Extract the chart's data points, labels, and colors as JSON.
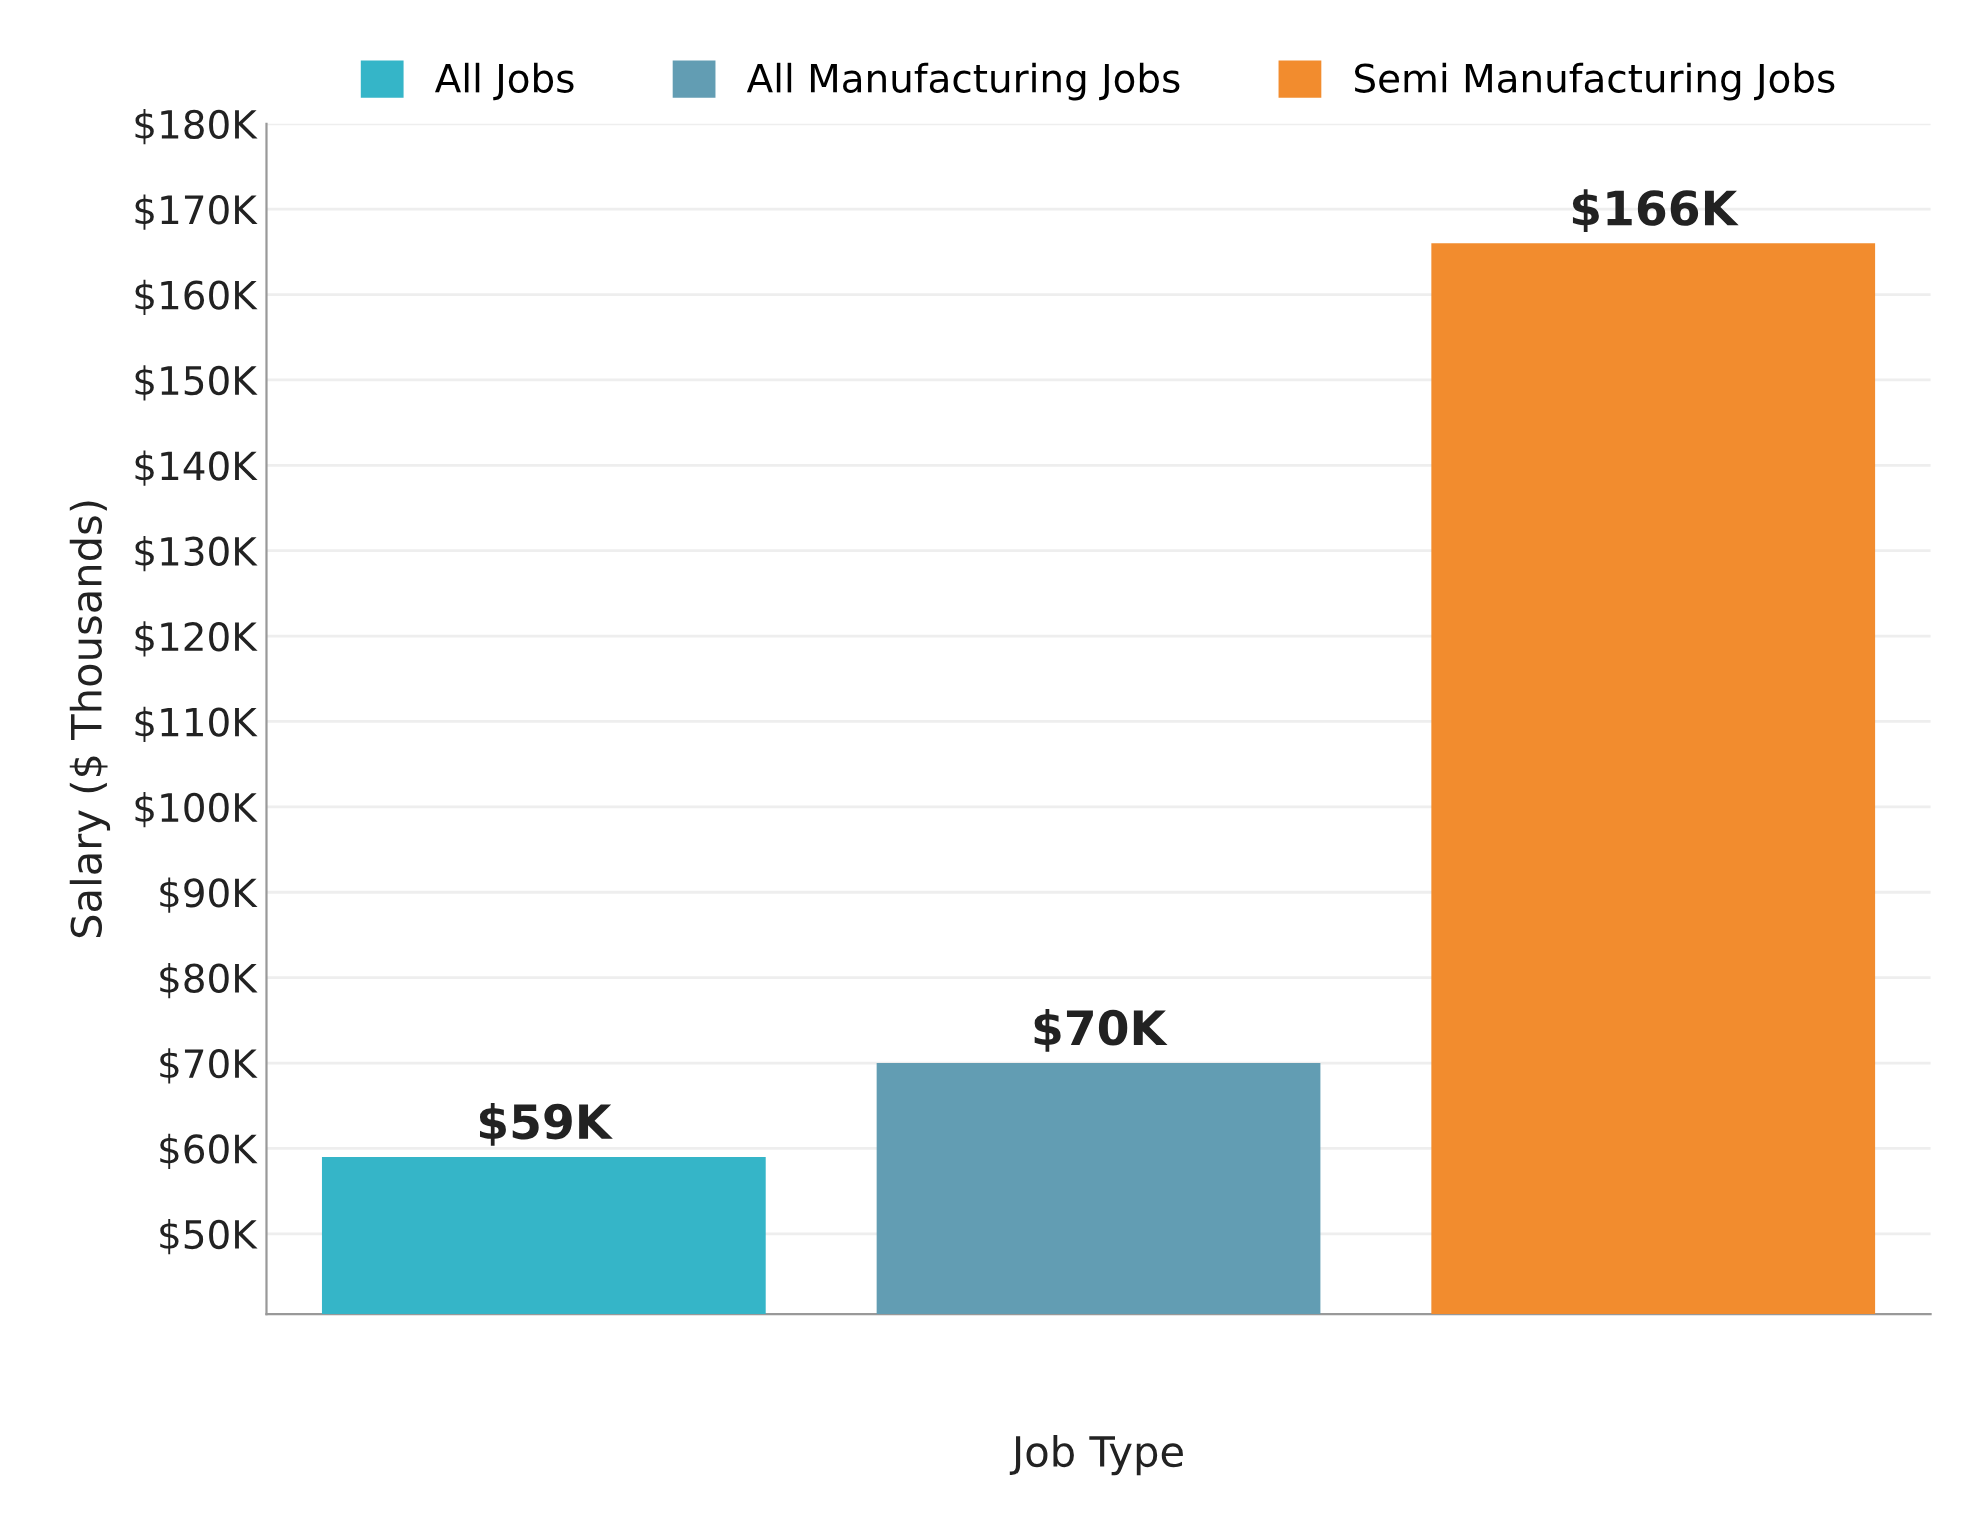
{
  "chart_data": {
    "type": "bar",
    "xlabel": "Job Type",
    "ylabel": "Salary ($ Thousands)",
    "categories": [
      null,
      null,
      null
    ],
    "series": [
      {
        "name": "All Jobs",
        "color": "#35b5c8",
        "values": [
          59,
          null,
          null
        ],
        "value_labels": [
          "$59K",
          null,
          null
        ]
      },
      {
        "name": "All Manufacturing Jobs",
        "color": "#629db3",
        "values": [
          null,
          70,
          null
        ],
        "value_labels": [
          null,
          "$70K",
          null
        ]
      },
      {
        "name": "Semi Manufacturing Jobs",
        "color": "#f28c2e",
        "values": [
          null,
          null,
          166
        ],
        "value_labels": [
          null,
          null,
          "$166K"
        ]
      }
    ],
    "ylim": [
      40.6,
      180
    ],
    "yticks": [
      {
        "value": 50,
        "label": "$50K"
      },
      {
        "value": 60,
        "label": "$60K"
      },
      {
        "value": 70,
        "label": "$70K"
      },
      {
        "value": 80,
        "label": "$80K"
      },
      {
        "value": 90,
        "label": "$90K"
      },
      {
        "value": 100,
        "label": "$100K"
      },
      {
        "value": 110,
        "label": "$110K"
      },
      {
        "value": 120,
        "label": "$120K"
      },
      {
        "value": 130,
        "label": "$130K"
      },
      {
        "value": 140,
        "label": "$140K"
      },
      {
        "value": 150,
        "label": "$150K"
      },
      {
        "value": 160,
        "label": "$160K"
      },
      {
        "value": 170,
        "label": "$170K"
      },
      {
        "value": 180,
        "label": "$180K"
      }
    ],
    "grid": "y",
    "legend": "top"
  }
}
